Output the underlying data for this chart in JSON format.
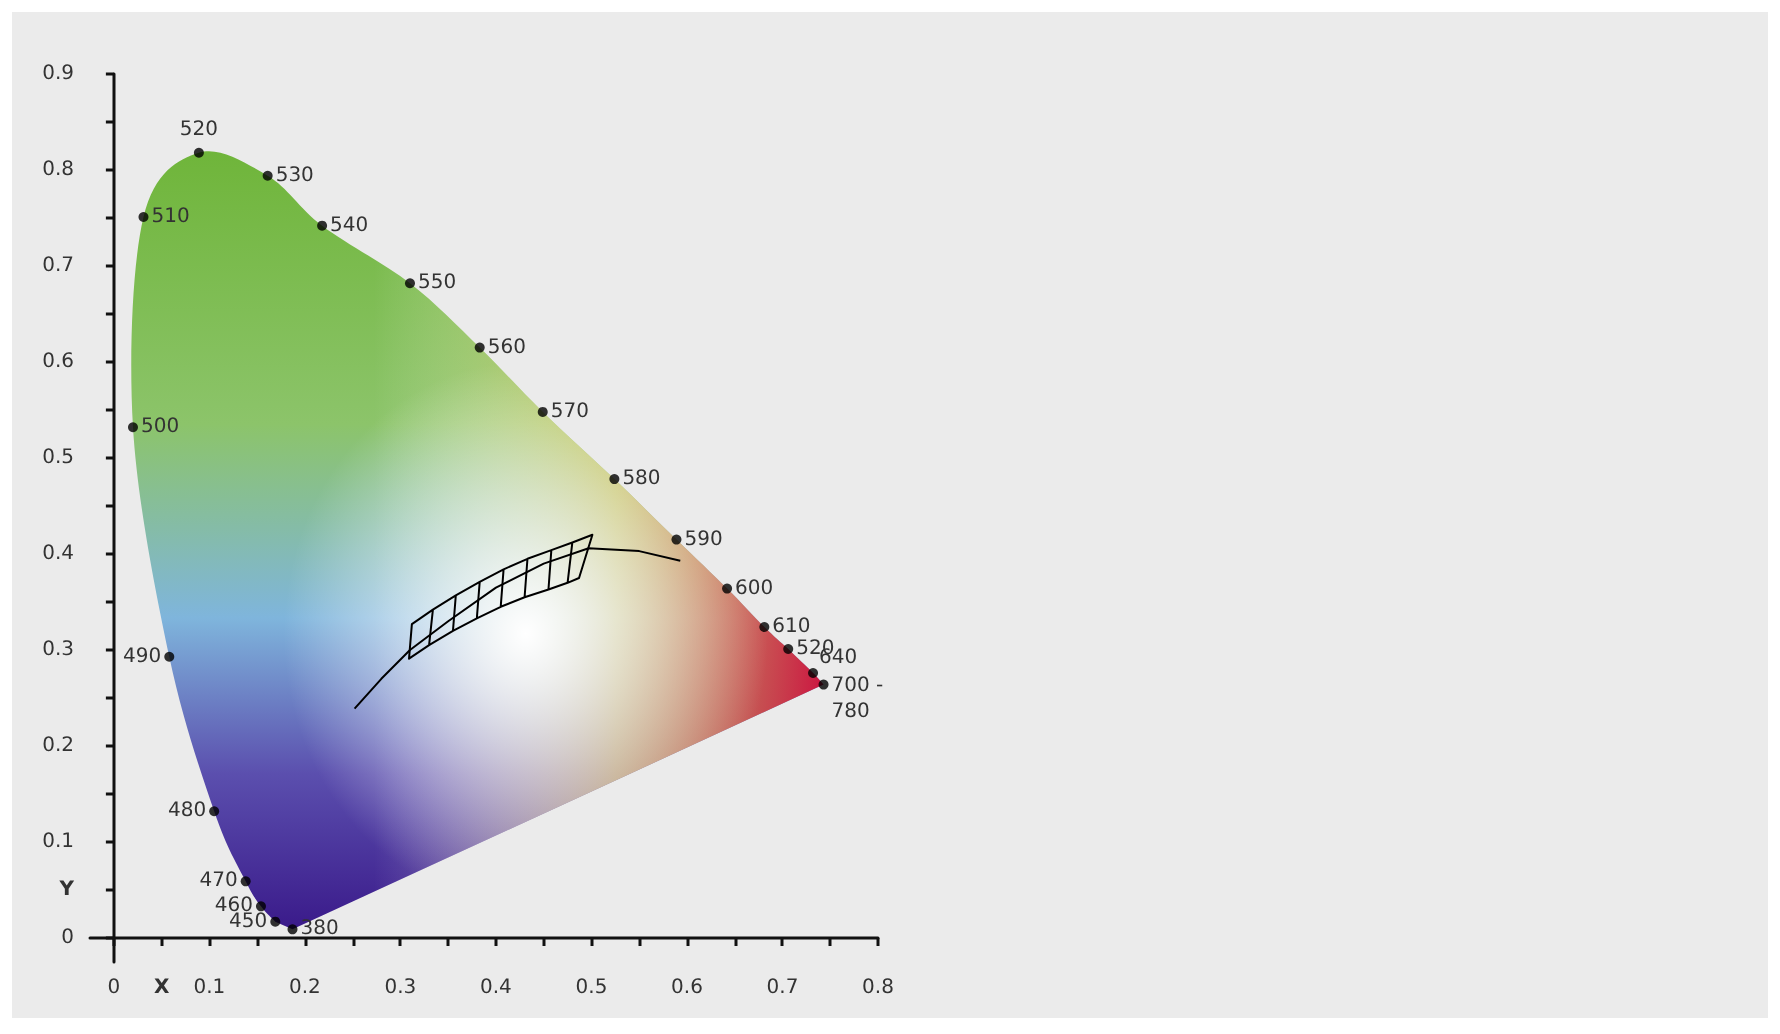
{
  "chart_data": {
    "type": "scatter",
    "xlabel": "X",
    "ylabel": "Y",
    "xlim": [
      -0.025,
      0.8
    ],
    "ylim": [
      -0.025,
      0.9
    ],
    "xticks": [
      0,
      {
        "value": 0.05,
        "label": null
      },
      0.1,
      {
        "value": 0.15,
        "label": null
      },
      0.2,
      {
        "value": 0.25,
        "label": null
      },
      0.3,
      {
        "value": 0.35,
        "label": null
      },
      0.4,
      {
        "value": 0.45,
        "label": null
      },
      0.5,
      {
        "value": 0.55,
        "label": null
      },
      0.6,
      {
        "value": 0.65,
        "label": null
      },
      0.7,
      {
        "value": 0.75,
        "label": null
      },
      0.8
    ],
    "yticks": [
      0,
      {
        "value": 0.05,
        "label": null
      },
      0.1,
      {
        "value": 0.15,
        "label": null
      },
      0.2,
      {
        "value": 0.25,
        "label": null
      },
      0.3,
      {
        "value": 0.35,
        "label": null
      },
      0.4,
      {
        "value": 0.45,
        "label": null
      },
      0.5,
      {
        "value": 0.55,
        "label": null
      },
      0.6,
      {
        "value": 0.65,
        "label": null
      },
      0.7,
      {
        "value": 0.75,
        "label": null
      },
      0.8,
      {
        "value": 0.85,
        "label": null
      },
      0.9
    ],
    "grid": false,
    "annotations": [
      {
        "text": "380",
        "x": 0.187,
        "y": 0.009
      },
      {
        "text": "450",
        "x": 0.169,
        "y": 0.017
      },
      {
        "text": "460",
        "x": 0.154,
        "y": 0.033
      },
      {
        "text": "470",
        "x": 0.138,
        "y": 0.059
      },
      {
        "text": "480",
        "x": 0.105,
        "y": 0.132
      },
      {
        "text": "490",
        "x": 0.058,
        "y": 0.293
      },
      {
        "text": "500",
        "x": 0.02,
        "y": 0.532
      },
      {
        "text": "510",
        "x": 0.031,
        "y": 0.751
      },
      {
        "text": "520",
        "x": 0.089,
        "y": 0.818
      },
      {
        "text": "530",
        "x": 0.161,
        "y": 0.794
      },
      {
        "text": "540",
        "x": 0.218,
        "y": 0.742
      },
      {
        "text": "550",
        "x": 0.31,
        "y": 0.682
      },
      {
        "text": "560",
        "x": 0.383,
        "y": 0.615
      },
      {
        "text": "570",
        "x": 0.449,
        "y": 0.548
      },
      {
        "text": "580",
        "x": 0.524,
        "y": 0.478
      },
      {
        "text": "590",
        "x": 0.589,
        "y": 0.415
      },
      {
        "text": "600",
        "x": 0.642,
        "y": 0.364
      },
      {
        "text": "610",
        "x": 0.681,
        "y": 0.324
      },
      {
        "text": "520",
        "x": 0.706,
        "y": 0.301
      },
      {
        "text": "640",
        "x": 0.732,
        "y": 0.276
      },
      {
        "text": "700 - 780",
        "x": 0.743,
        "y": 0.264
      }
    ],
    "series": [
      {
        "marker": "circle",
        "color": "#000000",
        "x": [
          0.187,
          0.169,
          0.154,
          0.138,
          0.105,
          0.058,
          0.02,
          0.031,
          0.089,
          0.161,
          0.218,
          0.31,
          0.383,
          0.449,
          0.524,
          0.589,
          0.642,
          0.681,
          0.706,
          0.732,
          0.743
        ],
        "values": [
          0.009,
          0.017,
          0.033,
          0.059,
          0.132,
          0.293,
          0.532,
          0.751,
          0.818,
          0.794,
          0.742,
          0.682,
          0.615,
          0.548,
          0.478,
          0.415,
          0.364,
          0.324,
          0.301,
          0.276,
          0.264
        ]
      },
      {
        "type": "line",
        "marker": "none",
        "color": "#000000",
        "x": [
          0.252,
          0.28,
          0.31,
          0.35,
          0.4,
          0.45,
          0.497,
          0.55,
          0.593
        ],
        "values": [
          0.239,
          0.27,
          0.3,
          0.33,
          0.365,
          0.39,
          0.406,
          0.403,
          0.393
        ]
      },
      {
        "type": "line",
        "marker": "none",
        "color": "#000000",
        "x": [
          0.312,
          0.334,
          0.358,
          0.383,
          0.408,
          0.433,
          0.458,
          0.48,
          0.501,
          0.487,
          0.475,
          0.48,
          0.458,
          0.455,
          0.43,
          0.433,
          0.408,
          0.405,
          0.38,
          0.383,
          0.358,
          0.355,
          0.33,
          0.334,
          0.312,
          0.309,
          0.33,
          0.355,
          0.38,
          0.405,
          0.43,
          0.455,
          0.475,
          0.487
        ],
        "values": [
          0.327,
          0.342,
          0.357,
          0.371,
          0.384,
          0.395,
          0.404,
          0.412,
          0.42,
          0.375,
          0.37,
          0.412,
          0.404,
          0.363,
          0.355,
          0.395,
          0.384,
          0.345,
          0.333,
          0.371,
          0.357,
          0.32,
          0.305,
          0.342,
          0.327,
          0.291,
          0.305,
          0.32,
          0.333,
          0.345,
          0.355,
          0.363,
          0.37,
          0.375
        ]
      }
    ]
  }
}
